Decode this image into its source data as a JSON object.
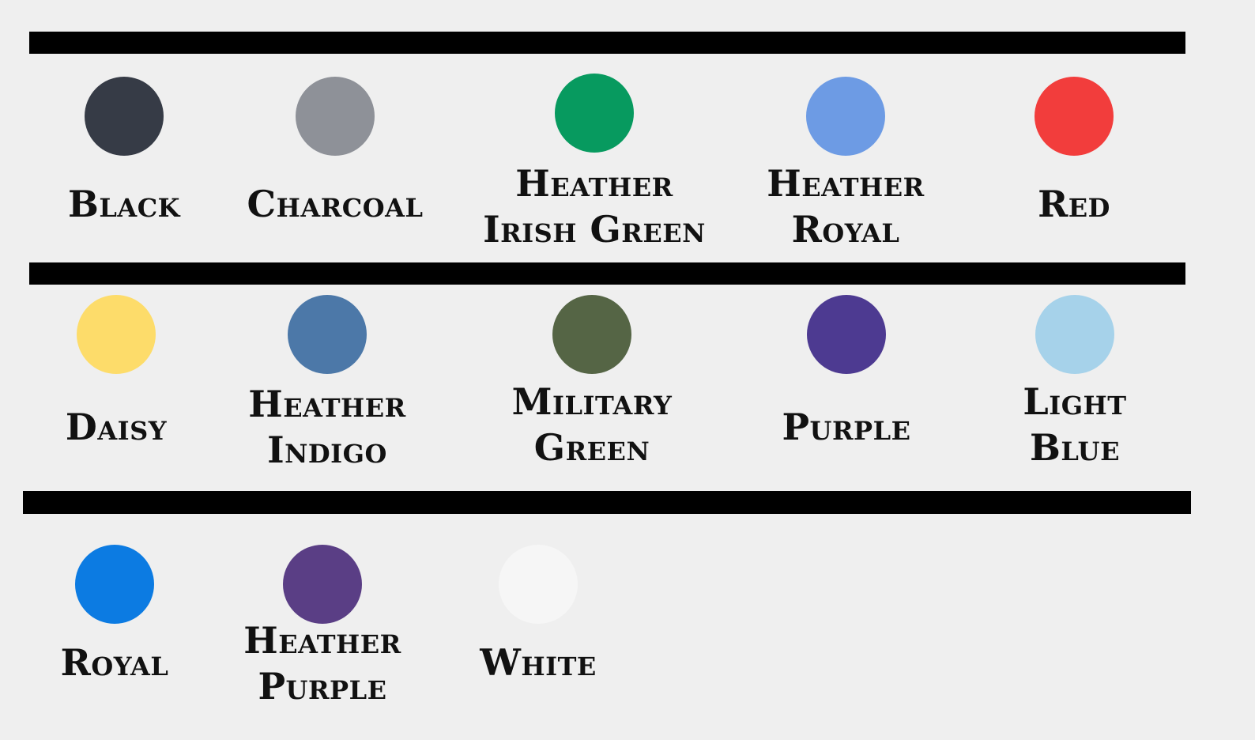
{
  "palette": {
    "background": "#efefef",
    "rule_color": "#000000",
    "rows": [
      {
        "items": [
          {
            "name": "Black",
            "color": "#363b46"
          },
          {
            "name": "Charcoal",
            "color": "#8e9198"
          },
          {
            "name": "Heather\nIrish Green",
            "color": "#079a5f"
          },
          {
            "name": "Heather\nRoyal",
            "color": "#6d9be4"
          },
          {
            "name": "Red",
            "color": "#f23d3c"
          }
        ]
      },
      {
        "items": [
          {
            "name": "Daisy",
            "color": "#fddc6a"
          },
          {
            "name": "Heather\nIndigo",
            "color": "#4c78a8"
          },
          {
            "name": "Military\nGreen",
            "color": "#556545"
          },
          {
            "name": "Purple",
            "color": "#4d3a91"
          },
          {
            "name": "Light\nBlue",
            "color": "#a6d2ea"
          }
        ]
      },
      {
        "items": [
          {
            "name": "Royal",
            "color": "#0c7be2"
          },
          {
            "name": "Heather\nPurple",
            "color": "#5a3e85"
          },
          {
            "name": "White",
            "color": "#f6f6f6"
          }
        ]
      }
    ]
  }
}
